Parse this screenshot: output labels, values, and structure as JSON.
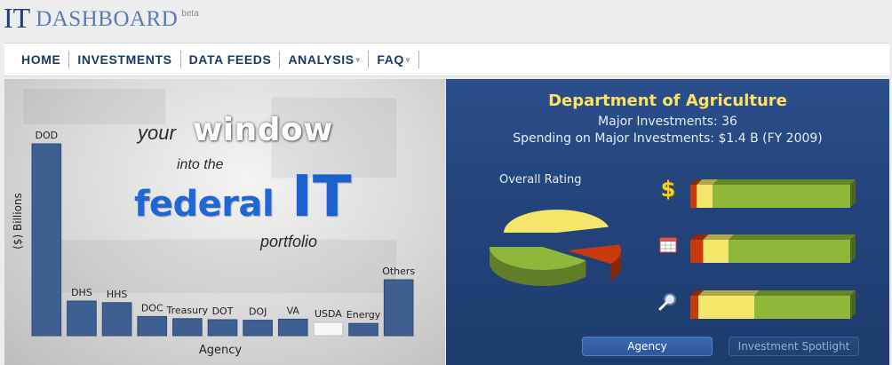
{
  "logo": {
    "main": "IT",
    "sub": "DASHBOARD",
    "beta": "beta"
  },
  "nav": [
    {
      "label": "HOME",
      "caret": ""
    },
    {
      "label": "INVESTMENTS",
      "caret": ""
    },
    {
      "label": "DATA FEEDS",
      "caret": ""
    },
    {
      "label": "ANALYSIS",
      "caret": "▿"
    },
    {
      "label": "FAQ",
      "caret": "▿"
    }
  ],
  "hero": {
    "tagline": {
      "your": "your",
      "window": "window",
      "into": "into the",
      "federal": "federal",
      "it": "IT",
      "portfolio": "portfolio"
    }
  },
  "agency_panel": {
    "title": "Department of Agriculture",
    "major_investments": "Major Investments: 36",
    "spending": "Spending on Major Investments: $1.4 B (FY 2009)",
    "overall_label": "Overall Rating",
    "metrics": [
      {
        "icon": "dollar-icon",
        "values": {
          "red": 0.04,
          "yellow": 0.1,
          "green": 0.86
        }
      },
      {
        "icon": "calendar-icon",
        "values": {
          "red": 0.08,
          "yellow": 0.16,
          "green": 0.76
        }
      },
      {
        "icon": "magnifier-icon",
        "values": {
          "red": 0.05,
          "yellow": 0.35,
          "green": 0.6
        }
      }
    ],
    "pie": {
      "yellow": 0.46,
      "green": 0.4,
      "red": 0.14
    },
    "colors": {
      "red": "#c63a0c",
      "yellow": "#f4e66a",
      "green": "#8fb83a"
    },
    "tabs": {
      "agency": "Agency",
      "spotlight": "Investment Spotlight"
    }
  },
  "chart_data": {
    "type": "bar",
    "categories": [
      "DOD",
      "DHS",
      "HHS",
      "DOC",
      "Treasury",
      "DOT",
      "DOJ",
      "VA",
      "USDA",
      "Energy",
      "Others"
    ],
    "values": [
      36.0,
      6.5,
      6.2,
      3.6,
      3.2,
      3.0,
      2.9,
      3.1,
      2.5,
      2.3,
      10.5
    ],
    "highlight": "USDA",
    "xlabel": "Agency",
    "ylabel": "($) Billions",
    "ylim": [
      0,
      42
    ],
    "colors": {
      "bar": "#3d5f91",
      "highlight": "#f7f7f7"
    }
  }
}
